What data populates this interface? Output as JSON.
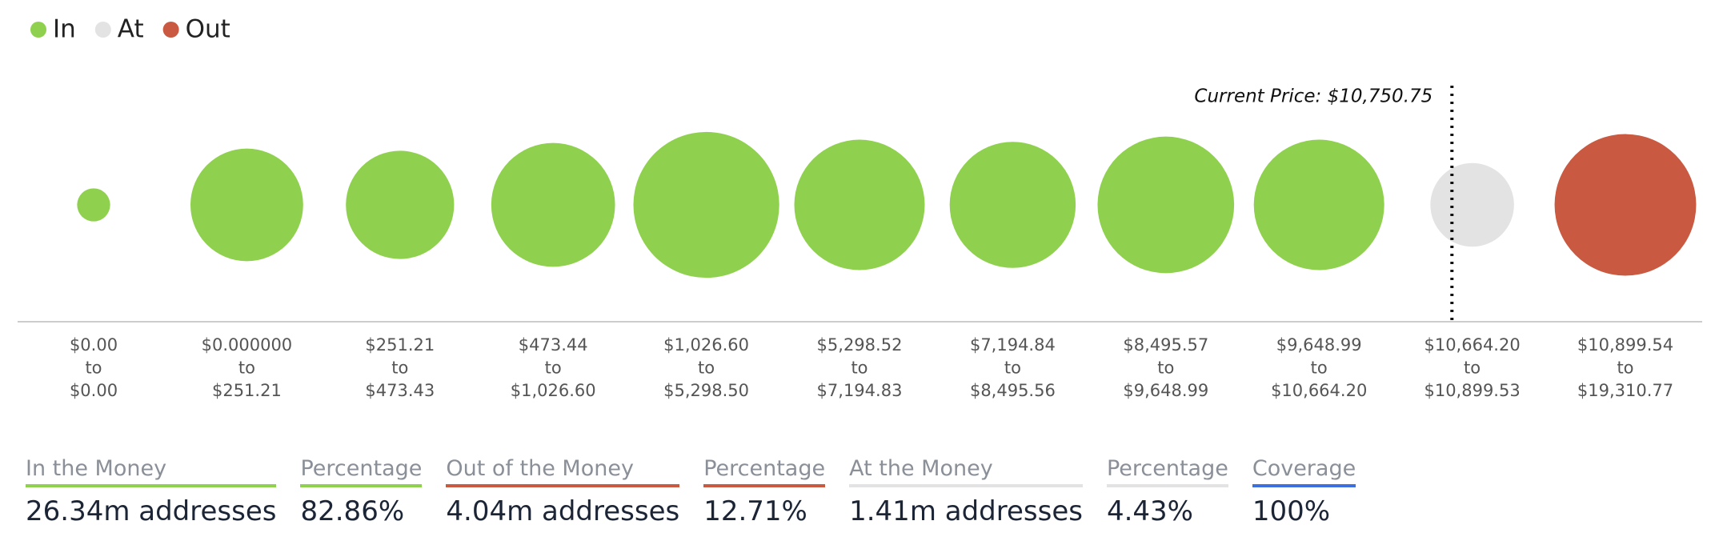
{
  "chart_data": {
    "type": "bubble",
    "categories": [
      [
        "$0.00",
        "to",
        "$0.00"
      ],
      [
        "$0.000000",
        "to",
        "$251.21"
      ],
      [
        "$251.21",
        "to",
        "$473.43"
      ],
      [
        "$473.44",
        "to",
        "$1,026.60"
      ],
      [
        "$1,026.60",
        "to",
        "$5,298.50"
      ],
      [
        "$5,298.52",
        "to",
        "$7,194.83"
      ],
      [
        "$7,194.84",
        "to",
        "$8,495.56"
      ],
      [
        "$8,495.57",
        "to",
        "$9,648.99"
      ],
      [
        "$9,648.99",
        "to",
        "$10,664.20"
      ],
      [
        "$10,664.20",
        "to",
        "$10,899.53"
      ],
      [
        "$10,899.54",
        "to",
        "$19,310.77"
      ]
    ],
    "series": [
      {
        "name": "In",
        "color": "#8fd14f",
        "values": [
          0.22,
          2.56,
          2.36,
          3.09,
          4.29,
          3.43,
          3.2,
          3.76,
          3.43,
          null,
          null
        ]
      },
      {
        "name": "At",
        "color": "#e3e3e3",
        "values": [
          null,
          null,
          null,
          null,
          null,
          null,
          null,
          null,
          null,
          1.41,
          null
        ]
      },
      {
        "name": "Out",
        "color": "#c95a41",
        "values": [
          null,
          null,
          null,
          null,
          null,
          null,
          null,
          null,
          null,
          null,
          4.04
        ]
      }
    ],
    "annotation": {
      "text": "Current Price: $10,750.75",
      "value": 10750.75
    },
    "legend": "top-left"
  },
  "summary": [
    {
      "label": "In the Money",
      "value": "26.34m addresses",
      "color": "#8fd14f"
    },
    {
      "label": "Percentage",
      "value": "82.86%",
      "color": "#8fd14f"
    },
    {
      "label": "Out of the Money",
      "value": "4.04m addresses",
      "color": "#c95a41"
    },
    {
      "label": "Percentage",
      "value": "12.71%",
      "color": "#c95a41"
    },
    {
      "label": "At the Money",
      "value": "1.41m addresses",
      "color": "#e3e3e3"
    },
    {
      "label": "Percentage",
      "value": "4.43%",
      "color": "#e3e3e3"
    },
    {
      "label": "Coverage",
      "value": "100%",
      "color": "#3d6fe0"
    }
  ]
}
